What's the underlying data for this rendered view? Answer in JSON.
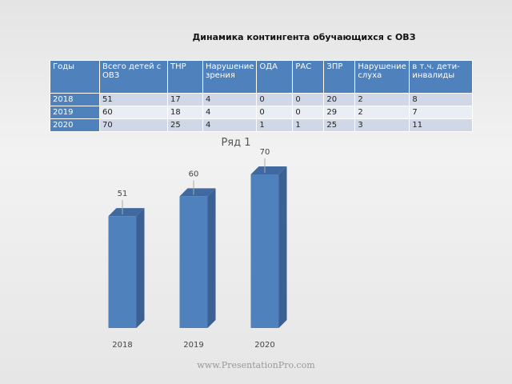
{
  "header": {
    "title": "Динамика контингента обучающихся с ОВЗ"
  },
  "table": {
    "columns": [
      "Годы",
      "Всего детей с ОВЗ",
      "ТНР",
      "Нарушение зрения",
      "ОДА",
      "РАС",
      "ЗПР",
      "Нарушение слуха",
      "в т.ч. дети-инвалиды"
    ],
    "rows": [
      [
        "2018",
        "51",
        "17",
        "4",
        "0",
        "0",
        "20",
        "2",
        "8"
      ],
      [
        "2019",
        "60",
        "18",
        "4",
        "0",
        "0",
        "29",
        "2",
        "7"
      ],
      [
        "2020",
        "70",
        "25",
        "4",
        "1",
        "1",
        "25",
        "3",
        "11"
      ]
    ]
  },
  "chart_data": {
    "type": "bar",
    "title": "Ряд 1",
    "categories": [
      "2018",
      "2019",
      "2020"
    ],
    "values": [
      51,
      60,
      70
    ],
    "color": "#4f81bd"
  },
  "footer": {
    "text": "www.PresentationPro.com"
  }
}
